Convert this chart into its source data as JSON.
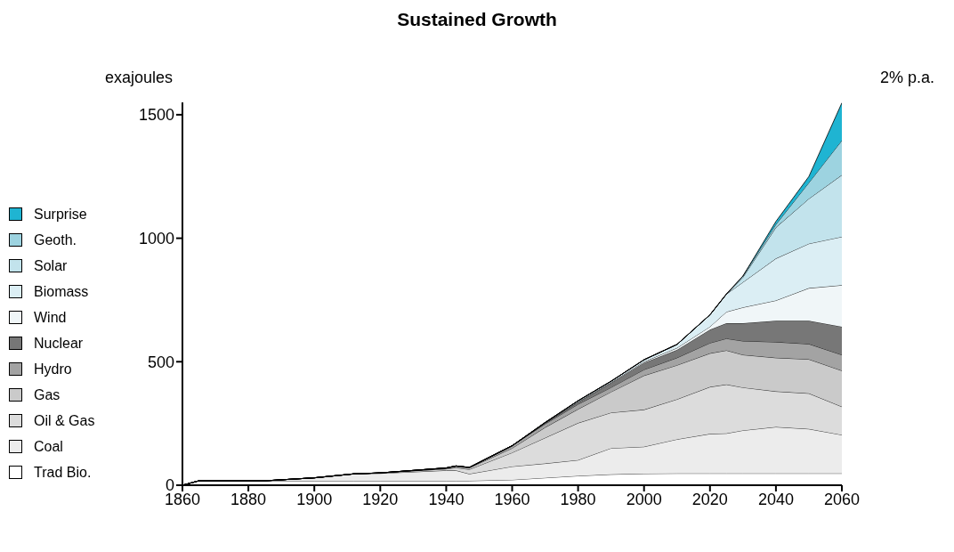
{
  "chart_data": {
    "type": "area",
    "title": "Sustained Growth",
    "ylabel": "exajoules",
    "annotations": [
      "2% p.a."
    ],
    "stacked": true,
    "legend": "left",
    "xlim": [
      1860,
      2060
    ],
    "xticks": [
      1860,
      1880,
      1900,
      1920,
      1940,
      1960,
      1980,
      2000,
      2020,
      2040,
      2060
    ],
    "ylim": [
      0,
      1550
    ],
    "yticks": [
      0,
      500,
      1000,
      1500
    ],
    "x": [
      1860,
      1865,
      1885,
      1900,
      1912,
      1920,
      1940,
      1943,
      1947,
      1960,
      1970,
      1980,
      1990,
      2000,
      2010,
      2020,
      2025,
      2030,
      2040,
      2050,
      2060
    ],
    "series": [
      {
        "name": "Trad Bio.",
        "color": "#ffffff",
        "values": [
          0,
          18,
          18,
          18,
          18,
          18,
          18,
          18,
          18,
          22,
          30,
          38,
          44,
          47,
          48,
          48,
          48,
          48,
          48,
          48,
          48
        ]
      },
      {
        "name": "Coal",
        "color": "#ececec",
        "values": [
          0,
          0,
          0,
          12,
          28,
          30,
          42,
          42,
          28,
          54,
          58,
          64,
          106,
          109,
          138,
          160,
          162,
          174,
          188,
          180,
          156
        ]
      },
      {
        "name": "Oil & Gas",
        "color": "#dcdcdc",
        "values": [
          0,
          0,
          0,
          0,
          0,
          2,
          6,
          11,
          18,
          56,
          104,
          150,
          144,
          150,
          162,
          190,
          198,
          174,
          144,
          144,
          114
        ]
      },
      {
        "name": "Gas",
        "color": "#cacaca",
        "values": [
          0,
          0,
          0,
          0,
          0,
          0,
          2,
          5,
          6,
          18,
          42,
          56,
          84,
          138,
          138,
          136,
          138,
          132,
          136,
          138,
          146
        ]
      },
      {
        "name": "Hydro",
        "color": "#a3a3a3",
        "values": [
          0,
          0,
          0,
          0,
          0,
          0,
          2,
          2,
          2,
          10,
          14,
          20,
          18,
          24,
          30,
          42,
          48,
          56,
          64,
          62,
          64
        ]
      },
      {
        "name": "Nuclear",
        "color": "#777777",
        "values": [
          0,
          0,
          0,
          0,
          0,
          0,
          0,
          0,
          0,
          0,
          4,
          8,
          18,
          28,
          32,
          54,
          62,
          72,
          86,
          94,
          114
        ]
      },
      {
        "name": "Wind",
        "color": "#f0f6f8",
        "values": [
          0,
          0,
          0,
          0,
          0,
          0,
          0,
          0,
          0,
          0,
          0,
          2,
          2,
          4,
          8,
          12,
          46,
          64,
          82,
          132,
          168
        ]
      },
      {
        "name": "Biomass",
        "color": "#dbeef4",
        "values": [
          0,
          0,
          0,
          0,
          0,
          0,
          0,
          0,
          0,
          0,
          2,
          4,
          5,
          8,
          14,
          48,
          72,
          102,
          170,
          180,
          196
        ]
      },
      {
        "name": "Solar",
        "color": "#c2e3ec",
        "values": [
          0,
          0,
          0,
          0,
          0,
          0,
          0,
          0,
          0,
          0,
          0,
          0,
          0,
          0,
          0,
          0,
          0,
          20,
          126,
          182,
          250
        ]
      },
      {
        "name": "Geoth.",
        "color": "#9dd3e0",
        "values": [
          0,
          0,
          0,
          0,
          0,
          0,
          0,
          0,
          0,
          0,
          0,
          0,
          0,
          0,
          0,
          0,
          0,
          5,
          12,
          65,
          140
        ]
      },
      {
        "name": "Surprise",
        "color": "#1fb4d2",
        "values": [
          0,
          0,
          0,
          0,
          0,
          0,
          0,
          0,
          0,
          0,
          0,
          0,
          0,
          0,
          0,
          0,
          0,
          0,
          12,
          25,
          152
        ]
      }
    ]
  }
}
